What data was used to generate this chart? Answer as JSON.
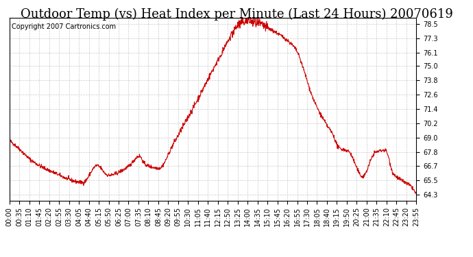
{
  "title": "Outdoor Temp (vs) Heat Index per Minute (Last 24 Hours) 20070619",
  "copyright_text": "Copyright 2007 Cartronics.com",
  "line_color": "#cc0000",
  "background_color": "#ffffff",
  "grid_color": "#bbbbbb",
  "yticks": [
    64.3,
    65.5,
    66.7,
    67.8,
    69.0,
    70.2,
    71.4,
    72.6,
    73.8,
    75.0,
    76.1,
    77.3,
    78.5
  ],
  "ylim": [
    63.8,
    79.0
  ],
  "xtick_labels": [
    "00:00",
    "00:35",
    "01:10",
    "01:45",
    "02:20",
    "02:55",
    "03:30",
    "04:05",
    "04:40",
    "05:15",
    "05:50",
    "06:25",
    "07:00",
    "07:35",
    "08:10",
    "08:45",
    "09:20",
    "09:55",
    "10:30",
    "11:05",
    "11:40",
    "12:15",
    "12:50",
    "13:25",
    "14:00",
    "14:35",
    "15:10",
    "15:45",
    "16:20",
    "16:55",
    "17:30",
    "18:05",
    "18:40",
    "19:15",
    "19:50",
    "20:25",
    "21:00",
    "21:35",
    "22:10",
    "22:45",
    "23:20",
    "23:55"
  ],
  "title_fontsize": 13,
  "tick_fontsize": 7,
  "copyright_fontsize": 7
}
